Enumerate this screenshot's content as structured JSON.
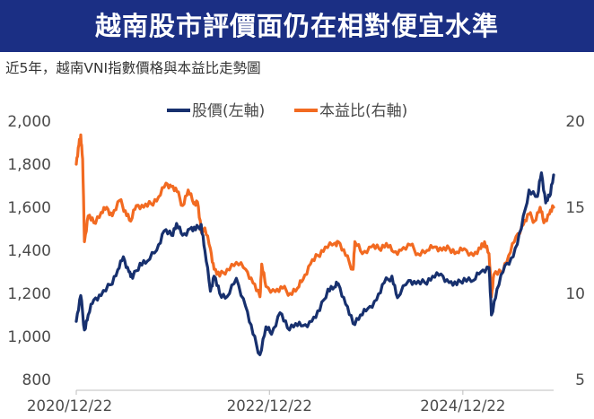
{
  "header": {
    "title": "越南股市評價面仍在相對便宜水準",
    "subtitle": "近5年，越南VNI指數價格與本益比走勢圖"
  },
  "colors": {
    "banner": "#1b2f84",
    "price_series": "#17306e",
    "pe_series": "#f26a21",
    "text": "#333333"
  },
  "chart_data": {
    "type": "line",
    "x_tick_labels": [
      "2020/12/22",
      "2022/12/22",
      "2024/12/22"
    ],
    "x_range": [
      "2020-12-22",
      "2025-11-30"
    ],
    "y_left_ticks": [
      "800",
      "1,000",
      "1,200",
      "1,400",
      "1,600",
      "1,800",
      "2,000"
    ],
    "y_left_range": [
      800,
      2000
    ],
    "y_right_ticks": [
      "5",
      "10",
      "15",
      "20"
    ],
    "y_right_range": [
      5,
      20
    ],
    "grid": false,
    "legend_position": "top-center",
    "series": [
      {
        "name": "股價(左軸)",
        "axis": "left",
        "color": "#17306e",
        "points": [
          [
            "2020-12-22",
            1070
          ],
          [
            "2021-01-08",
            1190
          ],
          [
            "2021-01-22",
            1030
          ],
          [
            "2021-02-05",
            1100
          ],
          [
            "2021-02-26",
            1170
          ],
          [
            "2021-03-26",
            1190
          ],
          [
            "2021-04-30",
            1240
          ],
          [
            "2021-05-28",
            1310
          ],
          [
            "2021-06-18",
            1370
          ],
          [
            "2021-07-09",
            1300
          ],
          [
            "2021-07-23",
            1270
          ],
          [
            "2021-08-20",
            1340
          ],
          [
            "2021-09-17",
            1350
          ],
          [
            "2021-10-22",
            1400
          ],
          [
            "2021-11-19",
            1490
          ],
          [
            "2021-12-17",
            1470
          ],
          [
            "2022-01-05",
            1525
          ],
          [
            "2022-01-28",
            1470
          ],
          [
            "2022-02-25",
            1500
          ],
          [
            "2022-03-18",
            1495
          ],
          [
            "2022-04-08",
            1520
          ],
          [
            "2022-04-22",
            1400
          ],
          [
            "2022-05-13",
            1210
          ],
          [
            "2022-05-27",
            1280
          ],
          [
            "2022-06-17",
            1200
          ],
          [
            "2022-07-15",
            1185
          ],
          [
            "2022-08-19",
            1270
          ],
          [
            "2022-09-23",
            1140
          ],
          [
            "2022-10-21",
            1010
          ],
          [
            "2022-11-16",
            915
          ],
          [
            "2022-12-09",
            1045
          ],
          [
            "2022-12-30",
            1010
          ],
          [
            "2023-01-31",
            1110
          ],
          [
            "2023-02-28",
            1040
          ],
          [
            "2023-03-31",
            1060
          ],
          [
            "2023-04-28",
            1050
          ],
          [
            "2023-05-31",
            1070
          ],
          [
            "2023-06-30",
            1120
          ],
          [
            "2023-07-31",
            1220
          ],
          [
            "2023-08-25",
            1230
          ],
          [
            "2023-09-08",
            1245
          ],
          [
            "2023-10-06",
            1150
          ],
          [
            "2023-11-03",
            1060
          ],
          [
            "2023-12-01",
            1100
          ],
          [
            "2023-12-29",
            1130
          ],
          [
            "2024-01-31",
            1170
          ],
          [
            "2024-02-29",
            1250
          ],
          [
            "2024-03-29",
            1280
          ],
          [
            "2024-04-19",
            1180
          ],
          [
            "2024-05-31",
            1260
          ],
          [
            "2024-06-28",
            1245
          ],
          [
            "2024-07-31",
            1250
          ],
          [
            "2024-08-30",
            1280
          ],
          [
            "2024-09-30",
            1290
          ],
          [
            "2024-10-31",
            1250
          ],
          [
            "2024-11-29",
            1240
          ],
          [
            "2024-12-27",
            1270
          ],
          [
            "2025-01-31",
            1260
          ],
          [
            "2025-02-28",
            1300
          ],
          [
            "2025-03-31",
            1320
          ],
          [
            "2025-04-09",
            1100
          ],
          [
            "2025-04-30",
            1220
          ],
          [
            "2025-05-30",
            1330
          ],
          [
            "2025-06-30",
            1370
          ],
          [
            "2025-07-31",
            1500
          ],
          [
            "2025-08-29",
            1680
          ],
          [
            "2025-09-30",
            1650
          ],
          [
            "2025-10-15",
            1760
          ],
          [
            "2025-10-31",
            1620
          ],
          [
            "2025-11-14",
            1650
          ],
          [
            "2025-11-30",
            1750
          ]
        ]
      },
      {
        "name": "本益比(右軸)",
        "axis": "right",
        "color": "#f26a21",
        "points": [
          [
            "2020-12-22",
            17.5
          ],
          [
            "2021-01-01",
            18.6
          ],
          [
            "2021-01-08",
            19.2
          ],
          [
            "2021-01-15",
            17.8
          ],
          [
            "2021-01-22",
            13.0
          ],
          [
            "2021-02-05",
            14.5
          ],
          [
            "2021-02-26",
            14.1
          ],
          [
            "2021-03-26",
            14.7
          ],
          [
            "2021-04-16",
            15.0
          ],
          [
            "2021-05-07",
            14.5
          ],
          [
            "2021-06-04",
            15.4
          ],
          [
            "2021-06-25",
            14.8
          ],
          [
            "2021-07-16",
            14.2
          ],
          [
            "2021-08-06",
            15.1
          ],
          [
            "2021-09-03",
            15.0
          ],
          [
            "2021-10-01",
            15.2
          ],
          [
            "2021-10-29",
            15.6
          ],
          [
            "2021-11-26",
            16.4
          ],
          [
            "2021-12-17",
            16.2
          ],
          [
            "2022-01-07",
            15.9
          ],
          [
            "2022-01-28",
            15.1
          ],
          [
            "2022-02-18",
            16.0
          ],
          [
            "2022-03-11",
            15.2
          ],
          [
            "2022-03-25",
            15.3
          ],
          [
            "2022-04-08",
            13.6
          ],
          [
            "2022-04-22",
            13.8
          ],
          [
            "2022-05-13",
            12.6
          ],
          [
            "2022-05-27",
            11.4
          ],
          [
            "2022-06-17",
            11.0
          ],
          [
            "2022-07-15",
            11.4
          ],
          [
            "2022-08-19",
            11.8
          ],
          [
            "2022-09-23",
            11.4
          ],
          [
            "2022-10-21",
            10.6
          ],
          [
            "2022-11-16",
            9.8
          ],
          [
            "2022-11-23",
            11.7
          ],
          [
            "2022-12-09",
            10.4
          ],
          [
            "2023-01-13",
            10.1
          ],
          [
            "2023-02-10",
            10.3
          ],
          [
            "2023-03-10",
            10.0
          ],
          [
            "2023-04-07",
            10.3
          ],
          [
            "2023-04-28",
            10.8
          ],
          [
            "2023-05-26",
            11.7
          ],
          [
            "2023-06-23",
            12.2
          ],
          [
            "2023-07-21",
            12.7
          ],
          [
            "2023-08-25",
            12.9
          ],
          [
            "2023-09-08",
            13.0
          ],
          [
            "2023-10-06",
            12.2
          ],
          [
            "2023-11-03",
            11.4
          ],
          [
            "2023-11-10",
            13.0
          ],
          [
            "2023-12-08",
            12.3
          ],
          [
            "2024-01-12",
            12.7
          ],
          [
            "2024-02-09",
            12.6
          ],
          [
            "2024-03-08",
            12.9
          ],
          [
            "2024-04-05",
            12.4
          ],
          [
            "2024-05-03",
            12.5
          ],
          [
            "2024-06-07",
            12.8
          ],
          [
            "2024-07-05",
            12.3
          ],
          [
            "2024-08-09",
            12.5
          ],
          [
            "2024-09-06",
            12.7
          ],
          [
            "2024-10-04",
            12.5
          ],
          [
            "2024-11-01",
            12.6
          ],
          [
            "2024-11-29",
            12.4
          ],
          [
            "2024-12-27",
            12.6
          ],
          [
            "2025-01-31",
            12.2
          ],
          [
            "2025-02-28",
            12.6
          ],
          [
            "2025-03-14",
            13.0
          ],
          [
            "2025-03-31",
            12.3
          ],
          [
            "2025-04-09",
            9.8
          ],
          [
            "2025-04-18",
            11.1
          ],
          [
            "2025-05-16",
            11.2
          ],
          [
            "2025-06-13",
            12.2
          ],
          [
            "2025-07-11",
            13.3
          ],
          [
            "2025-08-08",
            14.0
          ],
          [
            "2025-08-29",
            14.6
          ],
          [
            "2025-09-19",
            14.2
          ],
          [
            "2025-10-10",
            15.0
          ],
          [
            "2025-10-24",
            14.1
          ],
          [
            "2025-11-14",
            14.6
          ],
          [
            "2025-11-30",
            15.0
          ]
        ]
      }
    ]
  }
}
